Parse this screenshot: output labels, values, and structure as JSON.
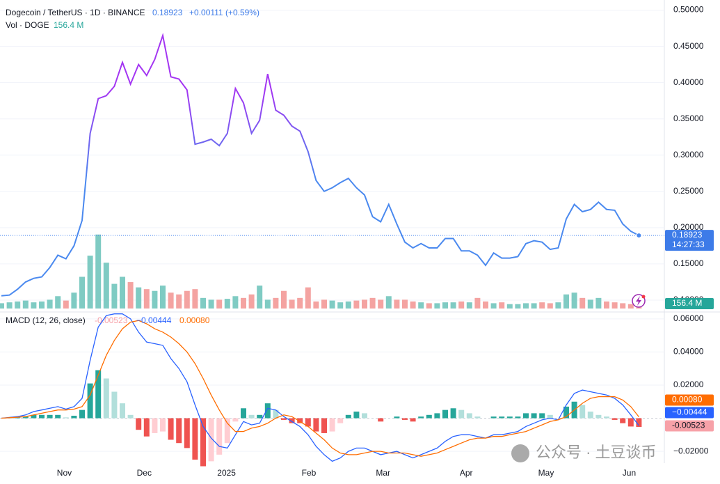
{
  "header": {
    "symbol": "Dogecoin / TetherUS · 1D · BINANCE",
    "last": "0.18923",
    "change": "+0.00111 (+0.59%)",
    "vol_label": "Vol · DOGE",
    "vol_value": "156.4 M",
    "time_left": "14:27:33",
    "watermark": "公众号 · 土豆谈币"
  },
  "chart_data": [
    {
      "type": "line",
      "colors": [
        "#a335f2",
        "#4a89ef"
      ],
      "values": [
        0.106,
        0.107,
        0.115,
        0.125,
        0.13,
        0.132,
        0.145,
        0.162,
        0.157,
        0.175,
        0.21,
        0.33,
        0.378,
        0.382,
        0.395,
        0.428,
        0.398,
        0.425,
        0.41,
        0.432,
        0.465,
        0.408,
        0.405,
        0.39,
        0.315,
        0.318,
        0.322,
        0.313,
        0.33,
        0.392,
        0.372,
        0.33,
        0.348,
        0.412,
        0.362,
        0.355,
        0.34,
        0.333,
        0.305,
        0.265,
        0.25,
        0.255,
        0.262,
        0.268,
        0.255,
        0.245,
        0.215,
        0.208,
        0.232,
        0.205,
        0.18,
        0.172,
        0.178,
        0.172,
        0.172,
        0.185,
        0.185,
        0.168,
        0.168,
        0.162,
        0.148,
        0.165,
        0.158,
        0.158,
        0.16,
        0.178,
        0.182,
        0.18,
        0.17,
        0.172,
        0.212,
        0.232,
        0.222,
        0.225,
        0.235,
        0.225,
        0.224,
        0.205,
        0.195,
        0.18923
      ],
      "ylim": [
        0.0865,
        0.514
      ],
      "yticks": [
        {
          "value": 0.5,
          "label": "0.50000"
        },
        {
          "value": 0.45,
          "label": "0.45000"
        },
        {
          "value": 0.4,
          "label": "0.40000"
        },
        {
          "value": 0.35,
          "label": "0.35000"
        },
        {
          "value": 0.3,
          "label": "0.30000"
        },
        {
          "value": 0.25,
          "label": "0.25000"
        },
        {
          "value": 0.2,
          "label": "0.20000"
        },
        {
          "value": 0.15,
          "label": "0.15000"
        },
        {
          "value": 0.1,
          "label": "0.10000"
        }
      ],
      "grid": true
    },
    {
      "type": "bar",
      "colors": [
        "#7fcbc3",
        "#f4a3a1"
      ],
      "ylim": [
        0,
        17000
      ],
      "values": [
        300,
        350,
        400,
        450,
        350,
        400,
        500,
        700,
        450,
        900,
        1800,
        3000,
        4200,
        2600,
        1400,
        1800,
        1500,
        1200,
        1100,
        1000,
        1300,
        900,
        800,
        1000,
        1100,
        600,
        500,
        500,
        550,
        700,
        600,
        800,
        1300,
        500,
        600,
        1000,
        500,
        600,
        1200,
        400,
        500,
        450,
        350,
        400,
        450,
        500,
        600,
        500,
        700,
        500,
        500,
        400,
        350,
        300,
        300,
        350,
        350,
        400,
        350,
        600,
        400,
        300,
        350,
        250,
        250,
        300,
        300,
        350,
        300,
        350,
        800,
        900,
        600,
        500,
        600,
        400,
        350,
        300,
        250,
        156.4
      ]
    },
    {
      "type": "macd",
      "title": "MACD (12, 26, close)",
      "ylim": [
        -0.0271,
        0.0633
      ],
      "yticks": [
        {
          "value": 0.06,
          "label": "0.06000"
        },
        {
          "value": 0.04,
          "label": "0.04000"
        },
        {
          "value": 0.02,
          "label": "0.02000"
        },
        {
          "value": -0.02,
          "label": "−0.02000"
        }
      ],
      "hist_colors": [
        "#26a69a",
        "#b2dfdb",
        "#ef5350",
        "#ffcdd2"
      ],
      "series": [
        {
          "color": "#f7a1a8",
          "last_label": "-0.00523",
          "values": [
            0,
            0.0002,
            0.0004,
            0.001,
            0.002,
            0.002,
            0.002,
            0.002,
            0.0005,
            0.0015,
            0.005,
            0.021,
            0.029,
            0.024,
            0.016,
            0.009,
            0.002,
            -0.007,
            -0.011,
            -0.009,
            -0.008,
            -0.013,
            -0.015,
            -0.018,
            -0.025,
            -0.029,
            -0.026,
            -0.022,
            -0.015,
            -0.002,
            0.006,
            0.002,
            0.002,
            0.009,
            0.005,
            -0.001,
            -0.003,
            -0.003,
            -0.005,
            -0.008,
            -0.009,
            -0.008,
            -0.003,
            0.002,
            0.004,
            0.003,
            0.0,
            -0.002,
            0.0,
            0.001,
            -0.001,
            -0.002,
            0.001,
            0.002,
            0.003,
            0.005,
            0.006,
            0.005,
            0.003,
            0.001,
            0.0,
            0.001,
            0.001,
            0.001,
            0.001,
            0.003,
            0.003,
            0.003,
            0.002,
            0.0,
            0.007,
            0.01,
            0.008,
            0.004,
            0.002,
            0.001,
            -0.001,
            -0.003,
            -0.005,
            -0.00523
          ]
        },
        {
          "color": "#2962ff",
          "last_label": "−0.00444",
          "values": [
            0,
            0.0005,
            0.001,
            0.002,
            0.004,
            0.005,
            0.006,
            0.007,
            0.0055,
            0.007,
            0.012,
            0.035,
            0.055,
            0.062,
            0.063,
            0.063,
            0.06,
            0.052,
            0.046,
            0.045,
            0.044,
            0.036,
            0.03,
            0.022,
            0.008,
            -0.005,
            -0.012,
            -0.017,
            -0.018,
            -0.01,
            -0.002,
            -0.004,
            -0.003,
            0.006,
            0.005,
            0.001,
            -0.002,
            -0.005,
            -0.01,
            -0.017,
            -0.022,
            -0.026,
            -0.024,
            -0.02,
            -0.018,
            -0.018,
            -0.02,
            -0.022,
            -0.021,
            -0.02,
            -0.022,
            -0.024,
            -0.022,
            -0.02,
            -0.018,
            -0.014,
            -0.011,
            -0.01,
            -0.01,
            -0.011,
            -0.012,
            -0.01,
            -0.01,
            -0.009,
            -0.008,
            -0.005,
            -0.003,
            -0.001,
            0.0,
            -0.001,
            0.008,
            0.015,
            0.017,
            0.016,
            0.015,
            0.014,
            0.012,
            0.008,
            0.002,
            -0.00444
          ]
        },
        {
          "color": "#ff6d00",
          "last_label": "0.00080",
          "values": [
            0,
            0.0003,
            0.0006,
            0.001,
            0.002,
            0.003,
            0.004,
            0.005,
            0.005,
            0.0055,
            0.007,
            0.014,
            0.026,
            0.038,
            0.047,
            0.054,
            0.058,
            0.059,
            0.057,
            0.054,
            0.052,
            0.049,
            0.045,
            0.04,
            0.033,
            0.024,
            0.014,
            0.005,
            -0.003,
            -0.008,
            -0.008,
            -0.006,
            -0.005,
            -0.003,
            0.0,
            0.002,
            0.001,
            -0.002,
            -0.005,
            -0.009,
            -0.013,
            -0.018,
            -0.021,
            -0.022,
            -0.022,
            -0.021,
            -0.02,
            -0.02,
            -0.021,
            -0.021,
            -0.021,
            -0.022,
            -0.023,
            -0.022,
            -0.021,
            -0.019,
            -0.017,
            -0.015,
            -0.013,
            -0.012,
            -0.012,
            -0.011,
            -0.011,
            -0.01,
            -0.009,
            -0.008,
            -0.006,
            -0.004,
            -0.002,
            -0.001,
            0.001,
            0.005,
            0.009,
            0.012,
            0.013,
            0.013,
            0.013,
            0.011,
            0.007,
            0.0008
          ]
        }
      ],
      "xticks": [
        {
          "value": 7.8,
          "label": "Nov"
        },
        {
          "value": 17.7,
          "label": "Dec"
        },
        {
          "value": 27.9,
          "label": "2025"
        },
        {
          "value": 38.1,
          "label": "Feb"
        },
        {
          "value": 47.3,
          "label": "Mar"
        },
        {
          "value": 57.6,
          "label": "Apr"
        },
        {
          "value": 67.5,
          "label": "May"
        },
        {
          "value": 77.8,
          "label": "Jun"
        }
      ]
    }
  ]
}
